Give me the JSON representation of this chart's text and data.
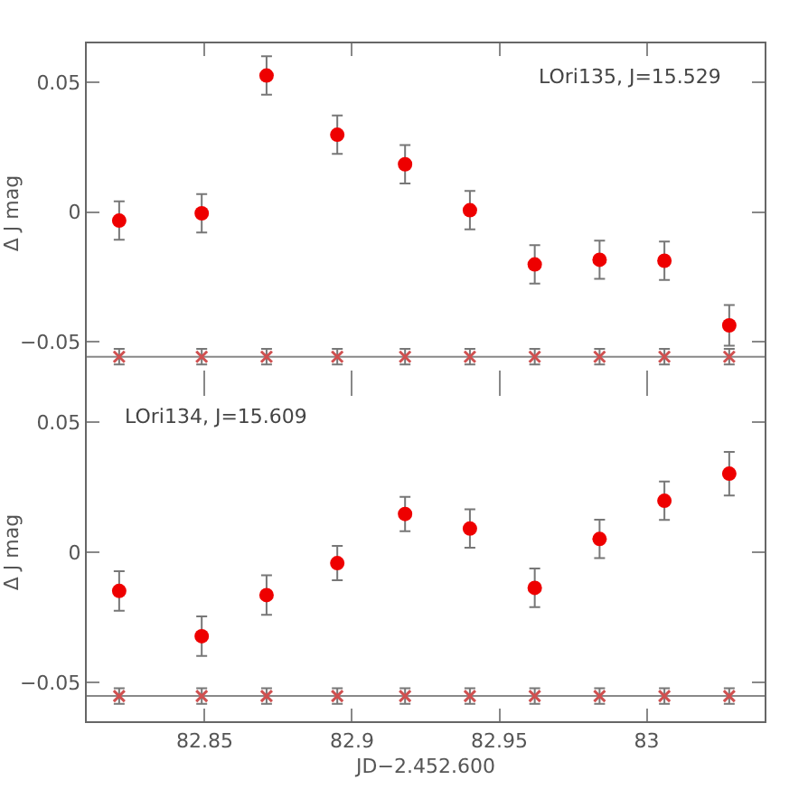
{
  "chart_data": [
    {
      "type": "scatter",
      "annotations": [
        "LOri135, J=15.529"
      ],
      "ylabel": "Δ J mag",
      "x": [
        82.821,
        82.849,
        82.871,
        82.895,
        82.918,
        82.94,
        82.962,
        82.984,
        83.006,
        83.028
      ],
      "series": [
        {
          "color": "#ee0000",
          "marker": "circle",
          "values": [
            -0.0033,
            -0.0005,
            0.0526,
            0.0298,
            0.0184,
            0.0007,
            -0.0202,
            -0.0184,
            -0.0188,
            -0.0437
          ],
          "errors": [
            0.0074,
            0.0074,
            0.0074,
            0.0074,
            0.0074,
            0.0074,
            0.0074,
            0.0074,
            0.0074,
            0.0078
          ]
        },
        {
          "color": "#d05050",
          "marker": "cross",
          "values": [
            -0.0558,
            -0.0558,
            -0.0558,
            -0.0558,
            -0.0558,
            -0.0558,
            -0.0558,
            -0.0558,
            -0.0558,
            -0.0558
          ],
          "errors": [
            0.003,
            0.003,
            0.003,
            0.003,
            0.003,
            0.003,
            0.003,
            0.003,
            0.003,
            0.003
          ]
        }
      ],
      "ref_lines": [
        {
          "axis": "y",
          "value": -0.0558,
          "color": "#888888"
        }
      ],
      "xlim": [
        82.81,
        83.04
      ],
      "xticks": [
        82.85,
        82.9,
        82.95,
        83
      ],
      "ylim": [
        -0.066,
        0.065
      ],
      "yticks": [
        {
          "value": -0.05,
          "label": "−0.05"
        },
        {
          "value": 0,
          "label": "0"
        },
        {
          "value": 0.05,
          "label": "0.05"
        }
      ],
      "tick_labels": "y",
      "grid": false
    },
    {
      "type": "scatter",
      "annotations": [
        "LOri134, J=15.609"
      ],
      "ylabel": "Δ J mag",
      "xlabel": "JD−2.452.600",
      "x": [
        82.821,
        82.849,
        82.871,
        82.895,
        82.918,
        82.94,
        82.962,
        82.984,
        83.006,
        83.028
      ],
      "series": [
        {
          "color": "#ee0000",
          "marker": "circle",
          "values": [
            -0.0149,
            -0.0323,
            -0.0165,
            -0.0042,
            0.0147,
            0.0091,
            -0.0137,
            0.0051,
            0.0198,
            0.0302
          ],
          "errors": [
            0.0076,
            0.0076,
            0.0076,
            0.0066,
            0.0066,
            0.0074,
            0.0074,
            0.0074,
            0.0074,
            0.0084
          ]
        },
        {
          "color": "#d05050",
          "marker": "cross",
          "values": [
            -0.0553,
            -0.0553,
            -0.0553,
            -0.0553,
            -0.0553,
            -0.0553,
            -0.0553,
            -0.0553,
            -0.0553,
            -0.0553
          ],
          "errors": [
            0.003,
            0.003,
            0.003,
            0.003,
            0.003,
            0.003,
            0.003,
            0.003,
            0.003,
            0.003
          ]
        }
      ],
      "ref_lines": [
        {
          "axis": "y",
          "value": -0.0553,
          "color": "#888888"
        }
      ],
      "xlim": [
        82.81,
        83.04
      ],
      "xticks": [
        82.85,
        82.9,
        82.95,
        83
      ],
      "ylim": [
        -0.065,
        0.065
      ],
      "yticks": [
        {
          "value": -0.05,
          "label": "−0.05"
        },
        {
          "value": 0,
          "label": "0"
        },
        {
          "value": 0.05,
          "label": "0.05"
        }
      ],
      "grid": false
    }
  ]
}
